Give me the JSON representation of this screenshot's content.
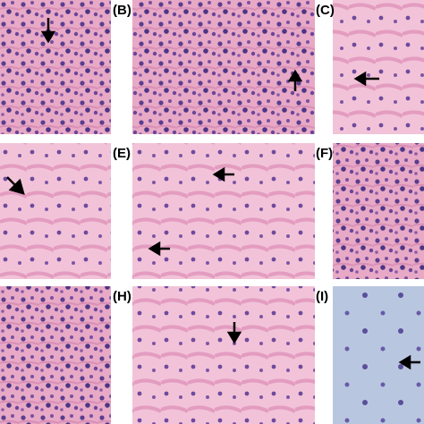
{
  "panels": [
    {
      "label": "(B)"
    },
    {
      "label": "(C)"
    },
    {
      "label": "(E)"
    },
    {
      "label": "(F)"
    },
    {
      "label": "(H)"
    },
    {
      "label": "(I)"
    }
  ]
}
